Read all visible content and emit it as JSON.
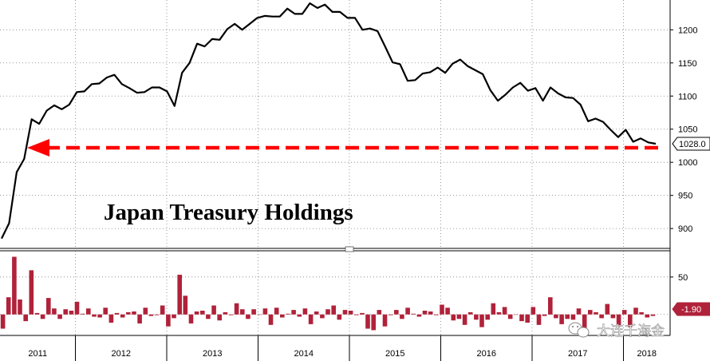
{
  "chart_data": [
    {
      "type": "line",
      "title": "Japan Treasury Holdings",
      "ylim": [
        870,
        1245
      ],
      "yticks": [
        900,
        950,
        1000,
        1050,
        1100,
        1150,
        1200
      ],
      "grid": true,
      "last_value_label": "1028.0",
      "arrow_level": 1022,
      "colors": {
        "line": "#000000",
        "arrow": "#ff0000",
        "grid": "#7f7f7f"
      },
      "series": [
        {
          "values": [
            885,
            908,
            985,
            1005,
            1065,
            1058,
            1078,
            1086,
            1080,
            1087,
            1106,
            1107,
            1118,
            1119,
            1128,
            1132,
            1118,
            1112,
            1105,
            1106,
            1113,
            1113,
            1107,
            1085,
            1135,
            1150,
            1179,
            1175,
            1186,
            1185,
            1201,
            1209,
            1200,
            1209,
            1218,
            1221,
            1220,
            1220,
            1232,
            1224,
            1224,
            1240,
            1233,
            1238,
            1227,
            1227,
            1218,
            1218,
            1200,
            1202,
            1198,
            1175,
            1151,
            1148,
            1123,
            1124,
            1134,
            1136,
            1143,
            1135,
            1149,
            1155,
            1145,
            1139,
            1133,
            1109,
            1093,
            1102,
            1113,
            1120,
            1108,
            1112,
            1093,
            1113,
            1104,
            1098,
            1097,
            1087,
            1062,
            1066,
            1061,
            1049,
            1038,
            1049,
            1031,
            1036,
            1030,
            1028
          ]
        }
      ]
    },
    {
      "type": "bar",
      "ylim": [
        -28,
        85
      ],
      "yticks": [
        50
      ],
      "grid": true,
      "last_value_label": "-1.90",
      "colors": {
        "bar": "#b0223a",
        "grid": "#7f7f7f"
      },
      "series": [
        {
          "values": [
            -19,
            23,
            77,
            20,
            -9,
            59,
            2,
            -6,
            22,
            8,
            -6,
            7,
            5,
            17,
            1,
            8,
            -3,
            -4,
            9,
            -11,
            2,
            -4,
            3,
            4,
            -12,
            9,
            -2,
            -1,
            12,
            -16,
            -5,
            53,
            25,
            -12,
            4,
            5,
            -6,
            12,
            -8,
            3,
            -1,
            15,
            7,
            -6,
            7,
            0,
            8,
            -14,
            9,
            -4,
            1,
            6,
            -3,
            8,
            -13,
            4,
            -5,
            7,
            12,
            -7,
            6,
            5,
            -1,
            2,
            -19,
            -21,
            6,
            -16,
            -1,
            6,
            -6,
            9,
            1,
            -3,
            5,
            4,
            -1,
            13,
            9,
            -8,
            -6,
            -14,
            3,
            -7,
            -17,
            -7,
            15,
            3,
            10,
            -6,
            0,
            -9,
            -11,
            10,
            -14,
            -2,
            23,
            -5,
            -13,
            -6,
            -7,
            8,
            -19,
            6,
            3,
            -5,
            14,
            -5,
            -16,
            6,
            -17,
            9,
            3,
            -4,
            -2
          ]
        }
      ]
    }
  ],
  "x_axis": {
    "years": [
      "2011",
      "2012",
      "2013",
      "2014",
      "2015",
      "2016",
      "2017",
      "2018"
    ]
  },
  "watermark": "大连千海金"
}
